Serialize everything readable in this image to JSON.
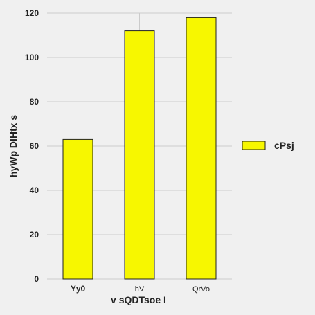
{
  "chart_data": {
    "type": "bar",
    "categories": [
      "Yy0",
      "hV",
      "QrVo"
    ],
    "series": [
      {
        "name": "cPsj",
        "values": [
          63,
          112,
          118
        ],
        "color": "#f7f700"
      }
    ],
    "xlabel": "v sQDTsoe I",
    "ylabel": "hyWp DlHtx s",
    "ylim": [
      0,
      120
    ],
    "yticks": [
      0,
      20,
      40,
      60,
      80,
      100,
      120
    ],
    "grid": true,
    "legend": "right",
    "background": "#f0f0f0",
    "grid_color": "#cbcbcb",
    "bold_category_index": 0
  }
}
